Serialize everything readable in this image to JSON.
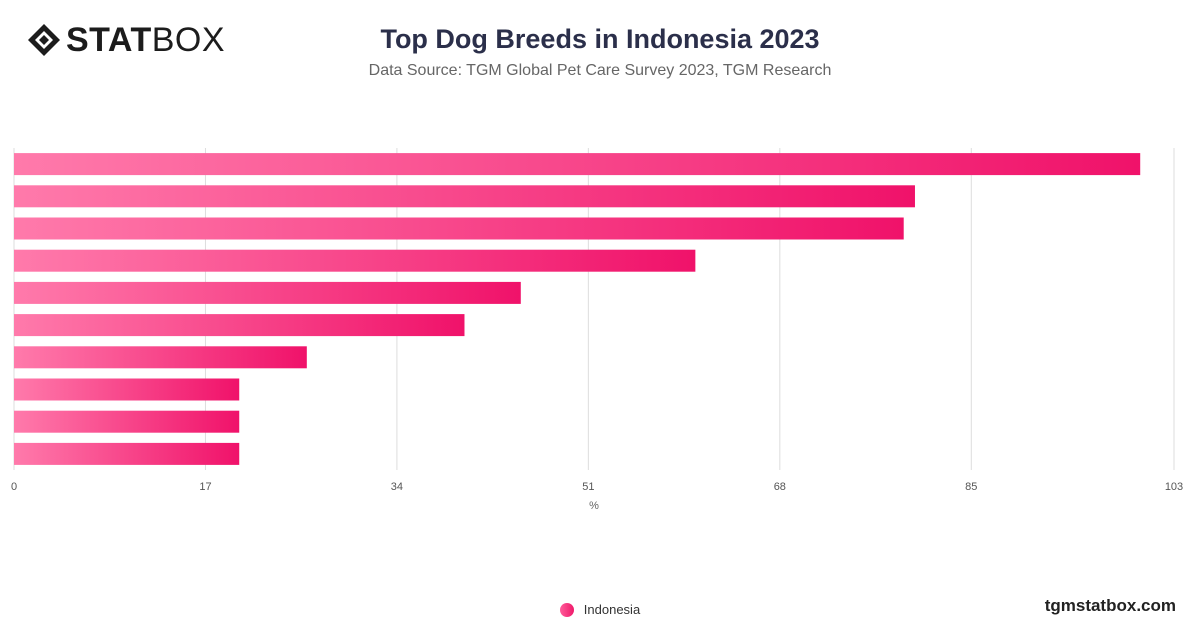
{
  "brand": {
    "logo_bold": "STAT",
    "logo_light": "BOX",
    "logo_icon": "diamond-logo-icon"
  },
  "header": {
    "title": "Top Dog Breeds in Indonesia 2023",
    "subtitle": "Data Source: TGM Global Pet Care Survey 2023, TGM Research"
  },
  "legend": {
    "label": "Indonesia"
  },
  "credit": "tgmstatbox.com",
  "colors": {
    "bar_start": "#ff7aab",
    "bar_end": "#f0126a",
    "grid": "#dddddd"
  },
  "chart_data": {
    "type": "bar",
    "orientation": "horizontal",
    "title": "Top Dog Breeds in Indonesia 2023",
    "xlabel": "%",
    "xlim": [
      0,
      103
    ],
    "xticks": [
      0,
      17,
      34,
      51,
      68,
      85,
      103
    ],
    "grid": true,
    "legend_position": "bottom",
    "series": [
      {
        "name": "Indonesia",
        "values": [
          100,
          80,
          79,
          60.5,
          45,
          40,
          26,
          20,
          20,
          20
        ]
      }
    ]
  }
}
